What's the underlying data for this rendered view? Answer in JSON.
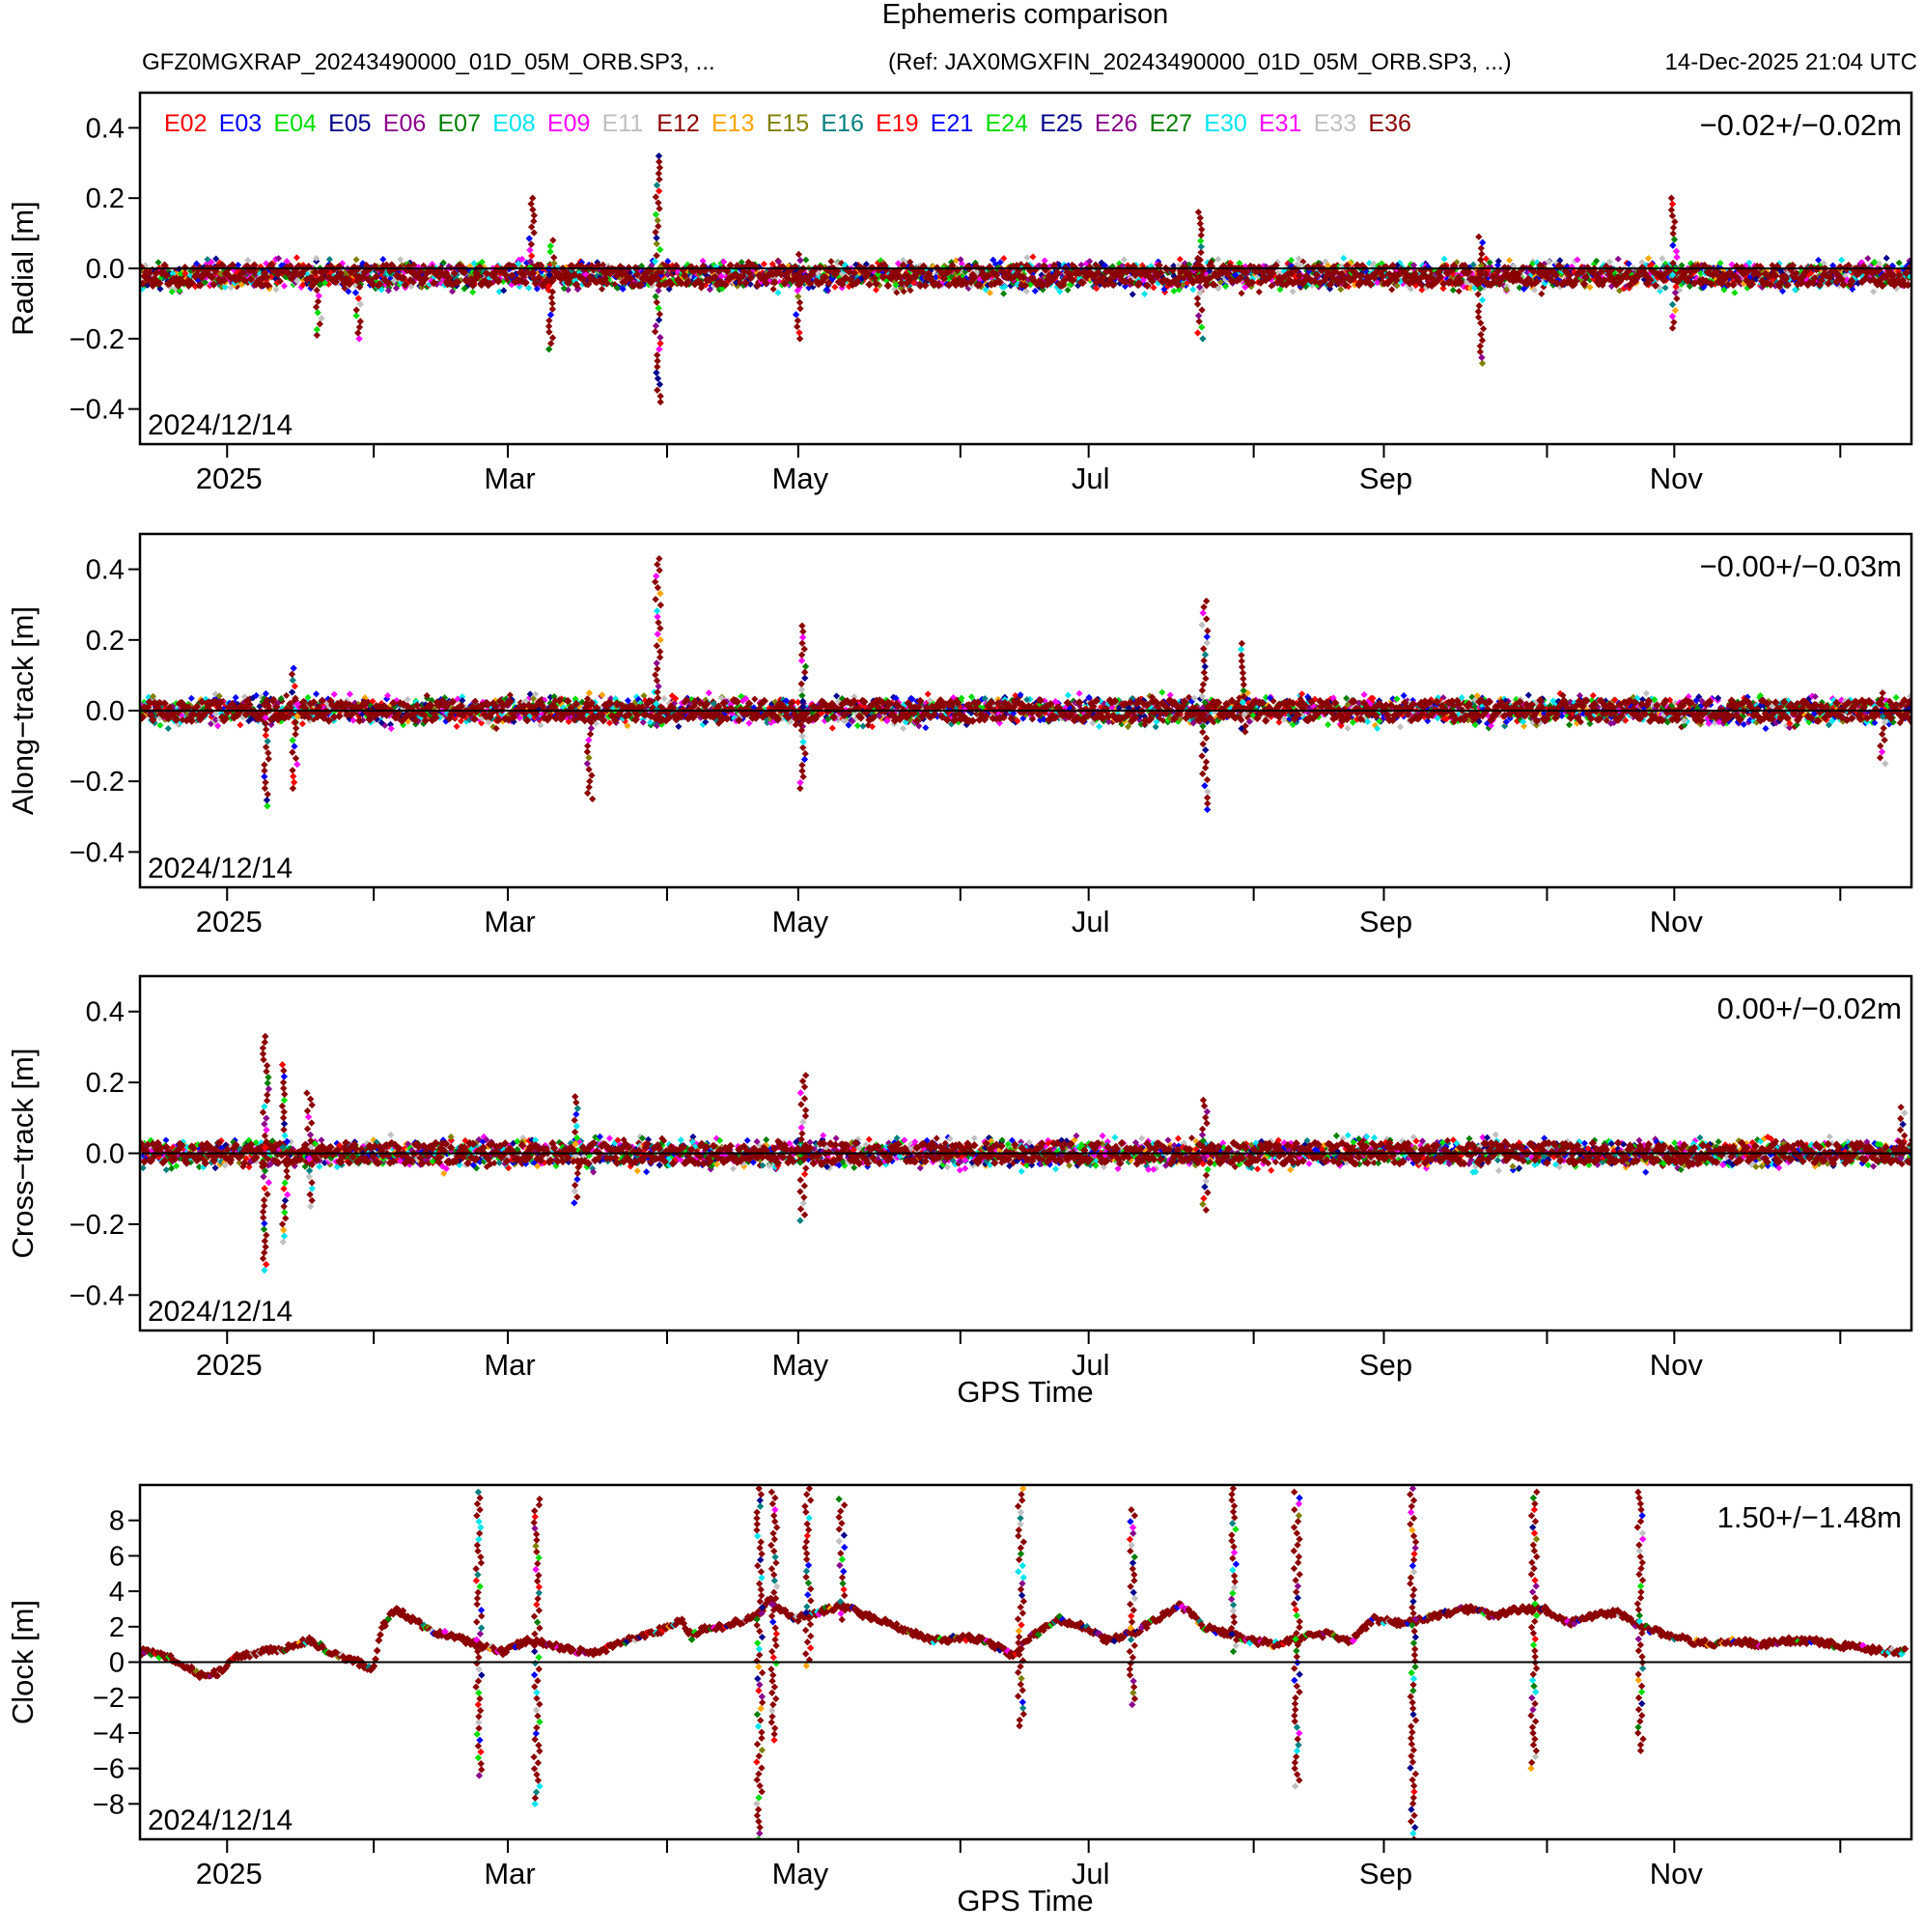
{
  "header": {
    "title": "Ephemeris comparison",
    "left_caption": "GFZ0MGXRAP_20243490000_01D_05M_ORB.SP3, ...",
    "ref_caption": "(Ref: JAX0MGXFIN_20243490000_01D_05M_ORB.SP3, ...)",
    "timestamp": "14-Dec-2025 21:04 UTC"
  },
  "legend": [
    {
      "name": "E02",
      "color": "#ff0000"
    },
    {
      "name": "E03",
      "color": "#0000ff"
    },
    {
      "name": "E04",
      "color": "#00dd00"
    },
    {
      "name": "E05",
      "color": "#00008b"
    },
    {
      "name": "E06",
      "color": "#8b008b"
    },
    {
      "name": "E07",
      "color": "#008000"
    },
    {
      "name": "E08",
      "color": "#00e5ee"
    },
    {
      "name": "E09",
      "color": "#ff00ff"
    },
    {
      "name": "E11",
      "color": "#c0c0c0"
    },
    {
      "name": "E12",
      "color": "#8b0000"
    },
    {
      "name": "E13",
      "color": "#ffa500"
    },
    {
      "name": "E15",
      "color": "#808000"
    },
    {
      "name": "E16",
      "color": "#008080"
    },
    {
      "name": "E19",
      "color": "#ff0000"
    },
    {
      "name": "E21",
      "color": "#0000ff"
    },
    {
      "name": "E24",
      "color": "#00dd00"
    },
    {
      "name": "E25",
      "color": "#00008b"
    },
    {
      "name": "E26",
      "color": "#8b008b"
    },
    {
      "name": "E27",
      "color": "#008000"
    },
    {
      "name": "E30",
      "color": "#00e5ee"
    },
    {
      "name": "E31",
      "color": "#ff00ff"
    },
    {
      "name": "E33",
      "color": "#c0c0c0"
    },
    {
      "name": "E36",
      "color": "#8b0000"
    }
  ],
  "chart_data": [
    {
      "type": "scatter",
      "id": "radial",
      "ylabel": "Radial [m]",
      "xlabel": "",
      "ylim": [
        -0.5,
        0.5
      ],
      "yticks": [
        "0.4",
        "0.2",
        "0.0",
        "-0.2",
        "-0.4"
      ],
      "ytick_values": [
        0.4,
        0.2,
        0.0,
        -0.2,
        -0.4
      ],
      "date_label": "2024/12/14",
      "stats": "−0.02+/−0.02m",
      "xtick_labels": [
        "2025",
        "Mar",
        "May",
        "Jul",
        "Sep",
        "Nov"
      ],
      "xtick_days": [
        18,
        76,
        136,
        196,
        257,
        317
      ],
      "xlim_days": [
        0,
        366
      ],
      "band": {
        "center": -0.02,
        "halfwidth": 0.045
      },
      "spikes": [
        {
          "day": 37,
          "min": -0.19,
          "max": -0.03
        },
        {
          "day": 45,
          "min": -0.2,
          "max": -0.02
        },
        {
          "day": 81,
          "min": -0.03,
          "max": 0.2
        },
        {
          "day": 85,
          "min": -0.23,
          "max": 0.08
        },
        {
          "day": 107,
          "min": -0.38,
          "max": 0.32
        },
        {
          "day": 136,
          "min": -0.2,
          "max": 0.04
        },
        {
          "day": 219,
          "min": -0.2,
          "max": 0.16
        },
        {
          "day": 277,
          "min": -0.27,
          "max": 0.09
        },
        {
          "day": 317,
          "min": -0.17,
          "max": 0.2
        }
      ]
    },
    {
      "type": "scatter",
      "id": "along-track",
      "ylabel": "Along−track [m]",
      "xlabel": "",
      "ylim": [
        -0.5,
        0.5
      ],
      "yticks": [
        "0.4",
        "0.2",
        "0.0",
        "-0.2",
        "-0.4"
      ],
      "ytick_values": [
        0.4,
        0.2,
        0.0,
        -0.2,
        -0.4
      ],
      "date_label": "2024/12/14",
      "stats": "−0.00+/−0.03m",
      "xtick_labels": [
        "2025",
        "Mar",
        "May",
        "Jul",
        "Sep",
        "Nov"
      ],
      "xtick_days": [
        18,
        76,
        136,
        196,
        257,
        317
      ],
      "xlim_days": [
        0,
        366
      ],
      "band": {
        "center": 0.0,
        "halfwidth": 0.045
      },
      "spikes": [
        {
          "day": 26,
          "min": -0.27,
          "max": 0.03
        },
        {
          "day": 32,
          "min": -0.22,
          "max": 0.12
        },
        {
          "day": 93,
          "min": -0.25,
          "max": 0.05
        },
        {
          "day": 107,
          "min": -0.03,
          "max": 0.43
        },
        {
          "day": 137,
          "min": -0.22,
          "max": 0.24
        },
        {
          "day": 220,
          "min": -0.28,
          "max": 0.31
        },
        {
          "day": 228,
          "min": -0.06,
          "max": 0.19
        },
        {
          "day": 360,
          "min": -0.15,
          "max": 0.05
        }
      ]
    },
    {
      "type": "scatter",
      "id": "cross-track",
      "ylabel": "Cross−track [m]",
      "xlabel": "GPS Time",
      "ylim": [
        -0.5,
        0.5
      ],
      "yticks": [
        "0.4",
        "0.2",
        "0.0",
        "-0.2",
        "-0.4"
      ],
      "ytick_values": [
        0.4,
        0.2,
        0.0,
        -0.2,
        -0.4
      ],
      "date_label": "2024/12/14",
      "stats": "0.00+/−0.02m",
      "xtick_labels": [
        "2025",
        "Mar",
        "May",
        "Jul",
        "Sep",
        "Nov"
      ],
      "xtick_days": [
        18,
        76,
        136,
        196,
        257,
        317
      ],
      "xlim_days": [
        0,
        366
      ],
      "band": {
        "center": 0.0,
        "halfwidth": 0.045
      },
      "spikes": [
        {
          "day": 26,
          "min": -0.33,
          "max": 0.33
        },
        {
          "day": 30,
          "min": -0.25,
          "max": 0.25
        },
        {
          "day": 35,
          "min": -0.15,
          "max": 0.17
        },
        {
          "day": 90,
          "min": -0.14,
          "max": 0.16
        },
        {
          "day": 137,
          "min": -0.19,
          "max": 0.22
        },
        {
          "day": 220,
          "min": -0.16,
          "max": 0.15
        },
        {
          "day": 364,
          "min": -0.03,
          "max": 0.13
        }
      ]
    },
    {
      "type": "line",
      "id": "clock",
      "ylabel": "Clock [m]",
      "xlabel": "GPS Time",
      "ylim": [
        -10,
        10
      ],
      "yticks": [
        "8",
        "6",
        "4",
        "2",
        "0",
        "-2",
        "-4",
        "-6",
        "-8"
      ],
      "ytick_values": [
        8,
        6,
        4,
        2,
        0,
        -2,
        -4,
        -6,
        -8
      ],
      "date_label": "2024/12/14",
      "stats": "1.50+/−1.48m",
      "xtick_labels": [
        "2025",
        "Mar",
        "May",
        "Jul",
        "Sep",
        "Nov"
      ],
      "xtick_days": [
        18,
        76,
        136,
        196,
        257,
        317
      ],
      "xlim_days": [
        0,
        366
      ],
      "x": [
        0,
        5,
        10,
        13,
        16,
        20,
        25,
        30,
        35,
        40,
        45,
        48,
        50,
        53,
        55,
        60,
        65,
        70,
        75,
        80,
        85,
        90,
        95,
        100,
        105,
        110,
        112,
        114,
        116,
        120,
        125,
        128,
        130,
        135,
        140,
        145,
        150,
        155,
        160,
        165,
        170,
        175,
        180,
        185,
        190,
        195,
        200,
        205,
        210,
        215,
        220,
        225,
        230,
        235,
        240,
        245,
        250,
        255,
        260,
        265,
        270,
        275,
        280,
        285,
        290,
        295,
        300,
        305,
        310,
        315,
        320,
        325,
        330,
        335,
        340,
        345,
        350,
        355,
        360,
        365
      ],
      "y": [
        0.6,
        0.4,
        -0.3,
        -0.8,
        -0.6,
        0.3,
        0.6,
        0.8,
        1.2,
        0.5,
        0.0,
        -0.5,
        2.0,
        3.0,
        2.6,
        1.8,
        1.4,
        1.0,
        0.6,
        1.2,
        1.0,
        0.6,
        0.6,
        1.2,
        1.6,
        2.0,
        2.4,
        1.4,
        1.8,
        2.0,
        2.4,
        2.8,
        3.6,
        2.4,
        2.8,
        3.2,
        2.6,
        2.2,
        1.6,
        1.2,
        1.4,
        1.2,
        0.4,
        1.6,
        2.4,
        2.0,
        1.2,
        1.6,
        2.4,
        3.2,
        2.0,
        1.6,
        1.2,
        1.0,
        1.4,
        1.6,
        1.2,
        2.4,
        2.2,
        2.4,
        2.8,
        3.0,
        2.6,
        3.0,
        3.0,
        2.2,
        2.6,
        2.8,
        2.0,
        1.6,
        1.2,
        1.0,
        1.2,
        1.0,
        1.2,
        1.2,
        1.0,
        0.8,
        0.6,
        0.6
      ],
      "spikes": [
        {
          "day": 70,
          "min": -6.4,
          "max": 9.6
        },
        {
          "day": 82,
          "min": -8.0,
          "max": 9.2
        },
        {
          "day": 128,
          "min": -10.0,
          "max": 9.8
        },
        {
          "day": 131,
          "min": -4.4,
          "max": 9.6
        },
        {
          "day": 138,
          "min": -0.2,
          "max": 9.8
        },
        {
          "day": 145,
          "min": 2.4,
          "max": 9.2
        },
        {
          "day": 182,
          "min": -3.6,
          "max": 9.8
        },
        {
          "day": 205,
          "min": -2.4,
          "max": 8.6
        },
        {
          "day": 226,
          "min": 0.6,
          "max": 9.8
        },
        {
          "day": 239,
          "min": -7.0,
          "max": 9.6
        },
        {
          "day": 263,
          "min": -10.0,
          "max": 9.8
        },
        {
          "day": 288,
          "min": -6.0,
          "max": 9.6
        },
        {
          "day": 310,
          "min": -5.0,
          "max": 9.6
        }
      ]
    }
  ]
}
